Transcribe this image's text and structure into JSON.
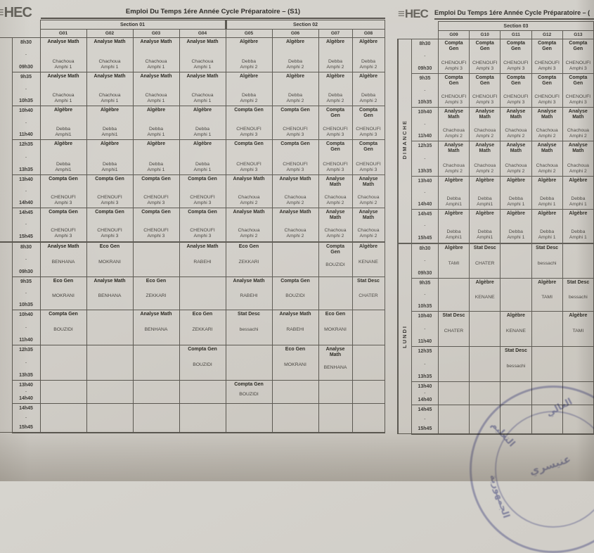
{
  "page": {
    "logo_text": "HEC",
    "stamp": {
      "color": "#7478b4",
      "fragments": [
        "التعليم",
        "العالي",
        "عنيسري",
        "الجمهورية"
      ]
    }
  },
  "tables": [
    {
      "name": "timetable-sections-01-02",
      "title": "Emploi Du Temps 1ére Année Cycle Préparatoire – (S1)",
      "sections": [
        {
          "label": "Section 01",
          "span": 4
        },
        {
          "label": "Section 02",
          "span": 4
        }
      ],
      "groups": [
        "G01",
        "G02",
        "G03",
        "G04",
        "G05",
        "G06",
        "G07",
        "G08"
      ],
      "time_slots": [
        [
          "8h30",
          "09h30"
        ],
        [
          "9h35",
          "10h35"
        ],
        [
          "10h40",
          "11h40"
        ],
        [
          "12h35",
          "13h35"
        ],
        [
          "13h40",
          "14h40"
        ],
        [
          "14h45",
          "15h45"
        ]
      ],
      "day_blocks": [
        {
          "day": "",
          "rows": [
            [
              [
                "Analyse Math",
                "Chachoua",
                "Amphi 1"
              ],
              [
                "Analyse Math",
                "Chachoua",
                "Amphi 1"
              ],
              [
                "Analyse Math",
                "Chachoua",
                "Amphi 1"
              ],
              [
                "Analyse Math",
                "Chachoua",
                "Amphi 1"
              ],
              [
                "Algèbre",
                "Debba",
                "Amphi 2"
              ],
              [
                "Algèbre",
                "Debba",
                "Amphi 2"
              ],
              [
                "Algèbre",
                "Debba",
                "Amphi 2"
              ],
              [
                "Algèbre",
                "Debba",
                "Amphi 2"
              ]
            ],
            [
              [
                "Analyse Math",
                "Chachoua",
                "Amphi 1"
              ],
              [
                "Analyse Math",
                "Chachoua",
                "Amphi 1"
              ],
              [
                "Analyse Math",
                "Chachoua",
                "Amphi 1"
              ],
              [
                "Analyse Math",
                "Chachoua",
                "Amphi 1"
              ],
              [
                "Algèbre",
                "Debba",
                "Amphi 2"
              ],
              [
                "Algèbre",
                "Debba",
                "Amphi 2"
              ],
              [
                "Algèbre",
                "Debba",
                "Amphi 2"
              ],
              [
                "Algèbre",
                "Debba",
                "Amphi 2"
              ]
            ],
            [
              [
                "Algèbre",
                "Debba",
                "Amphi1"
              ],
              [
                "Algèbre",
                "Debba",
                "Amphi1"
              ],
              [
                "Algèbre",
                "Debba",
                "Amphi 1"
              ],
              [
                "Algèbre",
                "Debba",
                "Amphi 1"
              ],
              [
                "Compta Gen",
                "CHENOUFI",
                "Amphi 3"
              ],
              [
                "Compta Gen",
                "CHENOUFI",
                "Amphi 3"
              ],
              [
                "Compta Gen",
                "CHENOUFI",
                "Amphi 3"
              ],
              [
                "Compta Gen",
                "CHENOUFI",
                "Amphi 3"
              ]
            ],
            [
              [
                "Algèbre",
                "Debba",
                "Amphi1"
              ],
              [
                "Algèbre",
                "Debba",
                "Amphi1"
              ],
              [
                "Algèbre",
                "Debba",
                "Amphi 1"
              ],
              [
                "Algèbre",
                "Debba",
                "Amphi 1"
              ],
              [
                "Compta Gen",
                "CHENOUFI",
                "Amphi 3"
              ],
              [
                "Compta Gen",
                "CHENOUFI",
                "Amphi 3"
              ],
              [
                "Compta Gen",
                "CHENOUFI",
                "Amphi 3"
              ],
              [
                "Compta Gen",
                "CHENOUFI",
                "Amphi 3"
              ]
            ],
            [
              [
                "Compta Gen",
                "CHENOUFI",
                "Amphi 3"
              ],
              [
                "Compta Gen",
                "CHENOUFI",
                "Amphi 3"
              ],
              [
                "Compta Gen",
                "CHENOUFI",
                "Amphi 3"
              ],
              [
                "Compta Gen",
                "CHENOUFI",
                "Amphi 3"
              ],
              [
                "Analyse Math",
                "Chachoua",
                "Amphi 2"
              ],
              [
                "Analyse Math",
                "Chachoua",
                "Amphi 2"
              ],
              [
                "Analyse Math",
                "Chachoua",
                "Amphi 2"
              ],
              [
                "Analyse Math",
                "Chachoua",
                "Amphi 2"
              ]
            ],
            [
              [
                "Compta Gen",
                "CHENOUFI",
                "Amphi 3"
              ],
              [
                "Compta Gen",
                "CHENOUFI",
                "Amphi 3"
              ],
              [
                "Compta Gen",
                "CHENOUFI",
                "Amphi 3"
              ],
              [
                "Compta Gen",
                "CHENOUFI",
                "Amphi 3"
              ],
              [
                "Analyse Math",
                "Chachoua",
                "Amphi 2"
              ],
              [
                "Analyse Math",
                "Chachoua",
                "Amphi 2"
              ],
              [
                "Analyse Math",
                "Chachoua",
                "Amphi 2"
              ],
              [
                "Analyse Math",
                "Chachoua",
                "Amphi 2"
              ]
            ]
          ]
        },
        {
          "day": "",
          "rows": [
            [
              [
                "Analyse Math",
                "BENHANA"
              ],
              [
                "Eco Gen",
                "MOKRANI"
              ],
              null,
              [
                "Analyse Math",
                "RABEHI"
              ],
              [
                "Eco Gen",
                "ZEKKARI"
              ],
              null,
              [
                "Compta Gen",
                "BOUZIDI"
              ],
              [
                "Algèbre",
                "KENANE"
              ]
            ],
            [
              [
                "Eco Gen",
                "MOKRANI"
              ],
              [
                "Analyse Math",
                "BENHANA"
              ],
              [
                "Eco Gen",
                "ZEKKARI"
              ],
              null,
              [
                "Analyse Math",
                "RABEHI"
              ],
              [
                "Compta Gen",
                "BOUZIDI"
              ],
              null,
              [
                "Stat Desc",
                "CHATER"
              ]
            ],
            [
              [
                "Compta Gen",
                "BOUZIDI"
              ],
              null,
              [
                "Analyse Math",
                "BENHANA"
              ],
              [
                "Eco Gen",
                "ZEKKARI"
              ],
              [
                "Stat Desc",
                "bessachi"
              ],
              [
                "Analyse Math",
                "RABEHI"
              ],
              [
                "Eco Gen",
                "MOKRANI"
              ],
              null
            ],
            [
              null,
              null,
              null,
              [
                "Compta Gen",
                "BOUZIDI"
              ],
              null,
              [
                "Eco Gen",
                "MOKRANI"
              ],
              [
                "Analyse Math",
                "BENHANA"
              ],
              null
            ],
            [
              null,
              null,
              null,
              null,
              [
                "Compta Gen",
                "BOUZIDI"
              ],
              null,
              null,
              null
            ],
            [
              null,
              null,
              null,
              null,
              null,
              null,
              null,
              null
            ]
          ]
        }
      ]
    },
    {
      "name": "timetable-section-03",
      "title": "Emploi Du Temps 1ére Année Cycle Préparatoire – (",
      "sections": [
        {
          "label": "Section 03",
          "span": 5
        }
      ],
      "groups": [
        "G09",
        "G10",
        "G11",
        "G12",
        "G13"
      ],
      "time_slots": [
        [
          "8h30",
          "09h30"
        ],
        [
          "9h35",
          "10h35"
        ],
        [
          "10h40",
          "11h40"
        ],
        [
          "12h35",
          "13h35"
        ],
        [
          "13h40",
          "14h40"
        ],
        [
          "14h45",
          "15h45"
        ]
      ],
      "day_blocks": [
        {
          "day": "DIMANCHE",
          "rows": [
            [
              [
                "Compta Gen",
                "CHENOUFI",
                "Amphi 3"
              ],
              [
                "Compta Gen",
                "CHENOUFI",
                "Amphi 3"
              ],
              [
                "Compta Gen",
                "CHENOUFI",
                "Amphi 3"
              ],
              [
                "Compta Gen",
                "CHENOUFI",
                "Amphi 3"
              ],
              [
                "Compta Gen",
                "CHENOUFI",
                "Amphi 3"
              ]
            ],
            [
              [
                "Compta Gen",
                "CHENOUFI",
                "Amphi 3"
              ],
              [
                "Compta Gen",
                "CHENOUFI",
                "Amphi 3"
              ],
              [
                "Compta Gen",
                "CHENOUFI",
                "Amphi 3"
              ],
              [
                "Compta Gen",
                "CHENOUFI",
                "Amphi 3"
              ],
              [
                "Compta Gen",
                "CHENOUFI",
                "Amphi 3"
              ]
            ],
            [
              [
                "Analyse Math",
                "Chachoua",
                "Amphi 2"
              ],
              [
                "Analyse Math",
                "Chachoua",
                "Amphi 2"
              ],
              [
                "Analyse Math",
                "Chachoua",
                "Amphi 2"
              ],
              [
                "Analyse Math",
                "Chachoua",
                "Amphi 2"
              ],
              [
                "Analyse Math",
                "Chachoua",
                "Amphi 2"
              ]
            ],
            [
              [
                "Analyse Math",
                "Chachoua",
                "Amphi 2"
              ],
              [
                "Analyse Math",
                "Chachoua",
                "Amphi 2"
              ],
              [
                "Analyse Math",
                "Chachoua",
                "Amphi 2"
              ],
              [
                "Analyse Math",
                "Chachoua",
                "Amphi 2"
              ],
              [
                "Analyse Math",
                "Chachoua",
                "Amphi 2"
              ]
            ],
            [
              [
                "Algèbre",
                "Debba",
                "Amphi1"
              ],
              [
                "Algèbre",
                "Debba",
                "Amphi1"
              ],
              [
                "Algèbre",
                "Debba",
                "Amphi 1"
              ],
              [
                "Algèbre",
                "Debba",
                "Amphi 1"
              ],
              [
                "Algèbre",
                "Debba",
                "Amphi 1"
              ]
            ],
            [
              [
                "Algèbre",
                "Debba",
                "Amphi1"
              ],
              [
                "Algèbre",
                "Debba",
                "Amphi1"
              ],
              [
                "Algèbre",
                "Debba",
                "Amphi 1"
              ],
              [
                "Algèbre",
                "Debba",
                "Amphi 1"
              ],
              [
                "Algèbre",
                "Debba",
                "Amphi 1"
              ]
            ]
          ]
        },
        {
          "day": "LUNDI",
          "rows": [
            [
              [
                "Algèbre",
                "TAMI"
              ],
              [
                "Stat Desc",
                "CHATER"
              ],
              null,
              [
                "Stat Desc",
                "bessachi"
              ],
              null
            ],
            [
              null,
              [
                "Algèbre",
                "KENANE"
              ],
              null,
              [
                "Algèbre",
                "TAMI"
              ],
              [
                "Stat Desc",
                "bessachi"
              ]
            ],
            [
              [
                "Stat Desc",
                "CHATER"
              ],
              null,
              [
                "Algèbre",
                "KENANE"
              ],
              null,
              [
                "Algèbre",
                "TAMI"
              ]
            ],
            [
              null,
              null,
              [
                "Stat Desc",
                "bessachi"
              ],
              null,
              null
            ],
            [
              null,
              null,
              null,
              null,
              null
            ],
            [
              null,
              null,
              null,
              null,
              null
            ]
          ]
        }
      ]
    }
  ]
}
